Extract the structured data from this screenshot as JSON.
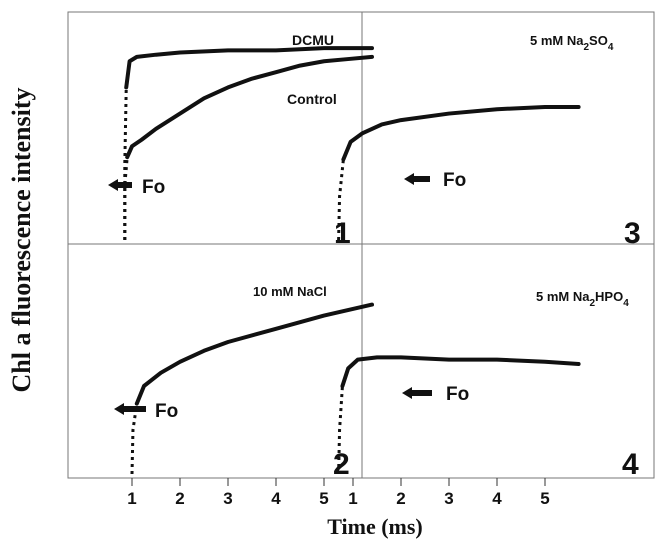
{
  "figure": {
    "ylabel": "Chl a fluorescence intensity",
    "xlabel": "Time (ms)",
    "xticks": [
      "1",
      "2",
      "3",
      "4",
      "5"
    ],
    "marker_label": "Fo",
    "colors": {
      "ink": "#111111",
      "frame": "#777777",
      "background": "#ffffff"
    }
  },
  "panels": [
    {
      "number": "1",
      "labels": [
        "DCMU",
        "Control"
      ],
      "label_sub": [],
      "fo_label": "Fo"
    },
    {
      "number": "3",
      "labels": [
        "5 mM Na",
        "2",
        "SO",
        "4"
      ],
      "fo_label": "Fo"
    },
    {
      "number": "2",
      "labels": [
        "10 mM NaCl"
      ],
      "fo_label": "Fo"
    },
    {
      "number": "4",
      "labels": [
        "5 mM Na",
        "2",
        "HPO",
        "4"
      ],
      "fo_label": "Fo"
    }
  ],
  "chart_data": [
    {
      "type": "line",
      "panel": "1",
      "xlabel": "Time (ms)",
      "ylabel": "Chl a fluorescence intensity",
      "xlim": [
        0,
        6
      ],
      "ylim": [
        0,
        1
      ],
      "series": [
        {
          "name": "DCMU",
          "x": [
            0.85,
            0.85,
            0.88,
            0.95,
            1.1,
            1.5,
            2,
            3,
            4,
            5,
            6
          ],
          "y": [
            0.0,
            0.35,
            0.7,
            0.82,
            0.84,
            0.85,
            0.86,
            0.87,
            0.87,
            0.88,
            0.88
          ]
        },
        {
          "name": "Control",
          "x": [
            0.85,
            0.85,
            0.9,
            1.0,
            1.2,
            1.5,
            2.0,
            2.5,
            3.0,
            3.5,
            4.0,
            4.5,
            5.0,
            5.5,
            6.0
          ],
          "y": [
            0.0,
            0.25,
            0.38,
            0.43,
            0.46,
            0.51,
            0.58,
            0.65,
            0.7,
            0.74,
            0.77,
            0.8,
            0.82,
            0.83,
            0.84
          ]
        }
      ]
    },
    {
      "type": "line",
      "panel": "3",
      "xlim": [
        0,
        6
      ],
      "ylim": [
        0,
        1
      ],
      "series": [
        {
          "name": "5 mM Na2SO4",
          "x": [
            0.7,
            0.72,
            0.8,
            0.95,
            1.2,
            1.6,
            2,
            3,
            4,
            5,
            5.7
          ],
          "y": [
            0.0,
            0.2,
            0.37,
            0.45,
            0.49,
            0.53,
            0.55,
            0.58,
            0.6,
            0.61,
            0.61
          ]
        }
      ]
    },
    {
      "type": "line",
      "panel": "2",
      "xlim": [
        0,
        6
      ],
      "ylim": [
        0,
        1
      ],
      "series": [
        {
          "name": "10 mM NaCl",
          "x": [
            1.0,
            1.02,
            1.1,
            1.25,
            1.6,
            2,
            2.5,
            3,
            4,
            5,
            6
          ],
          "y": [
            0.0,
            0.2,
            0.32,
            0.4,
            0.46,
            0.51,
            0.56,
            0.6,
            0.66,
            0.72,
            0.77
          ]
        }
      ]
    },
    {
      "type": "line",
      "panel": "4",
      "xlim": [
        0,
        6
      ],
      "ylim": [
        0,
        1
      ],
      "series": [
        {
          "name": "5 mM Na2HPO4",
          "x": [
            0.7,
            0.72,
            0.78,
            0.9,
            1.1,
            1.5,
            2,
            3,
            4,
            5,
            5.7
          ],
          "y": [
            0.0,
            0.2,
            0.4,
            0.48,
            0.52,
            0.53,
            0.53,
            0.52,
            0.52,
            0.51,
            0.5
          ]
        }
      ]
    }
  ]
}
